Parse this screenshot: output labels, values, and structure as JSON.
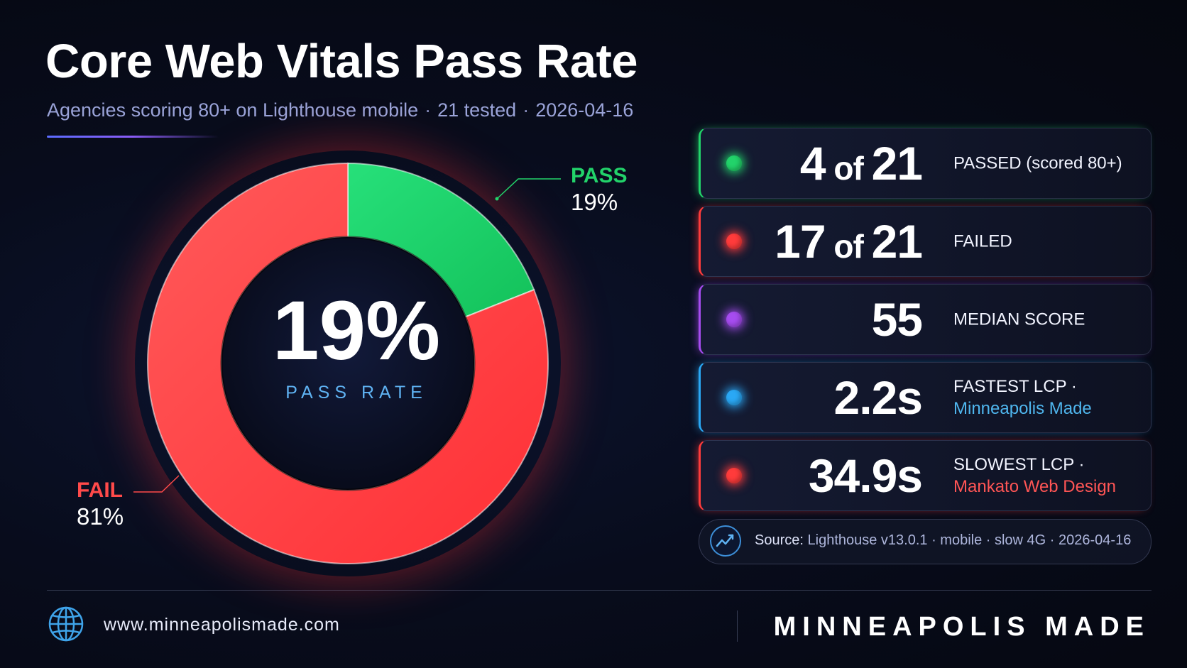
{
  "header": {
    "title": "Core Web Vitals Pass Rate",
    "subtitle_parts": [
      "Agencies scoring 80+ on Lighthouse mobile",
      "21 tested",
      "2026-04-16"
    ],
    "separator": "·"
  },
  "colors": {
    "pass": "#22d36a",
    "fail": "#ff3b3b",
    "median": "#a64cf0",
    "fastest": "#2aa8f5",
    "accent_text_fast": "#4fb6ee",
    "accent_text_slow": "#ff5555"
  },
  "chart_data": {
    "type": "pie",
    "style": "donut",
    "slices": [
      {
        "label": "PASS",
        "value": 19,
        "value_label": "19%",
        "color": "#22d36a"
      },
      {
        "label": "FAIL",
        "value": 81,
        "value_label": "81%",
        "color": "#ff3b3b"
      }
    ],
    "center_value": "19%",
    "center_label": "PASS RATE"
  },
  "stats": [
    {
      "value_main": "4",
      "value_mid": " of ",
      "value_end": "21",
      "label": "PASSED (scored 80+)",
      "sub": "",
      "color": "#22d36a"
    },
    {
      "value_main": "17",
      "value_mid": " of ",
      "value_end": "21",
      "label": "FAILED",
      "sub": "",
      "color": "#ff3b3b"
    },
    {
      "value_main": "55",
      "value_mid": "",
      "value_end": "",
      "label": "MEDIAN SCORE",
      "sub": "",
      "color": "#a64cf0"
    },
    {
      "value_main": "2.2s",
      "value_mid": "",
      "value_end": "",
      "label": "FASTEST LCP ·",
      "sub": "Minneapolis Made",
      "color": "#2aa8f5"
    },
    {
      "value_main": "34.9s",
      "value_mid": "",
      "value_end": "",
      "label": "SLOWEST LCP ·",
      "sub": "Mankato Web Design",
      "color": "#ff3b3b"
    }
  ],
  "source": {
    "lead": "Source:",
    "text": "Lighthouse v13.0.1 · mobile · slow 4G · 2026-04-16"
  },
  "footer": {
    "url": "www.minneapolismade.com",
    "brand": "MINNEAPOLIS MADE"
  },
  "icons": {
    "source": "trend-line-icon",
    "footer": "globe-icon"
  }
}
